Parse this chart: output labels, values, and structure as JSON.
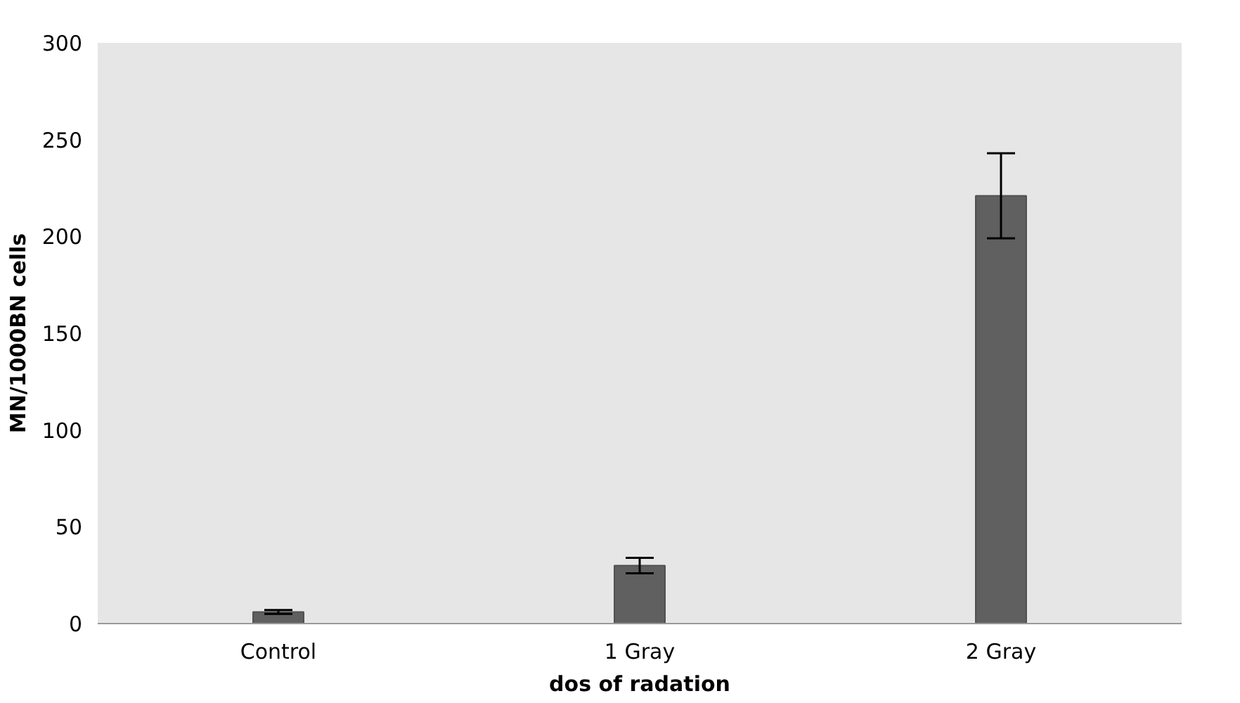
{
  "chart_data": {
    "type": "bar",
    "xlabel": "dos of radation",
    "ylabel": "MN/1000BN cells",
    "categories": [
      "Control",
      "1 Gray",
      "2 Gray"
    ],
    "values": [
      6,
      30,
      221
    ],
    "errors": [
      1,
      4,
      22
    ],
    "color": "#606060",
    "ylim": [
      0,
      300
    ],
    "yticks": [
      0,
      50,
      100,
      150,
      200,
      250,
      300
    ]
  }
}
